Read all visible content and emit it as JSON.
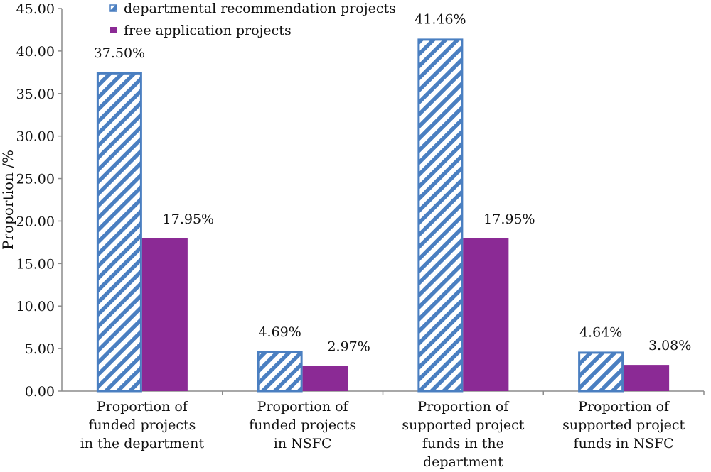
{
  "chart_data": {
    "type": "bar",
    "title": "",
    "xlabel": "",
    "ylabel": "Proportion /%",
    "ylim": [
      0,
      45
    ],
    "ytick_step": 5,
    "ytick_decimals": 2,
    "grid": false,
    "legend_position": "top",
    "categories": [
      [
        "Proportion of",
        "funded projects",
        "in the department"
      ],
      [
        "Proportion of",
        "funded projects",
        "in NSFC"
      ],
      [
        "Proportion of",
        "supported project",
        "funds in the",
        "department"
      ],
      [
        "Proportion of",
        "supported project",
        "funds in NSFC"
      ]
    ],
    "series": [
      {
        "name": "departmental recommendation projects",
        "values": [
          37.5,
          4.69,
          41.46,
          4.64
        ],
        "labels": [
          "37.50%",
          "4.69%",
          "41.46%",
          "4.64%"
        ],
        "fill": "hatched",
        "color": "#4a7fc1"
      },
      {
        "name": "free application projects",
        "values": [
          17.95,
          2.97,
          17.95,
          3.08
        ],
        "labels": [
          "17.95%",
          "2.97%",
          "17.95%",
          "3.08%"
        ],
        "fill": "solid",
        "color": "#8b2a95"
      }
    ]
  }
}
